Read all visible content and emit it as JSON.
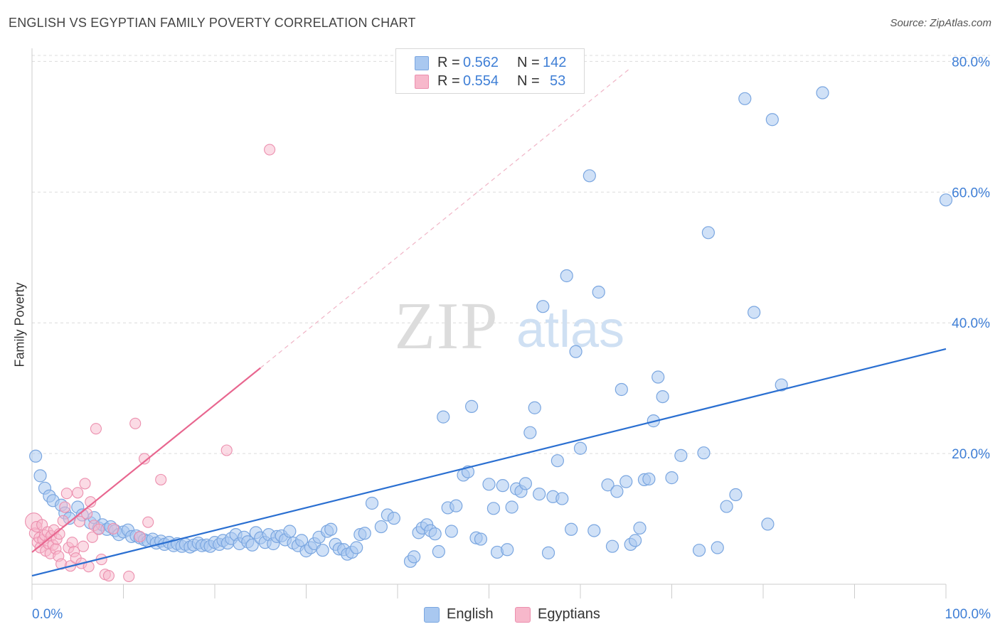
{
  "title": "ENGLISH VS EGYPTIAN FAMILY POVERTY CORRELATION CHART",
  "source": "Source: ZipAtlas.com",
  "watermark": {
    "zip": "ZIP",
    "atlas": "atlas"
  },
  "colors": {
    "english_fill": "#a9c8f0",
    "english_stroke": "#7aa6e0",
    "english_line": "#2a6fd1",
    "egypt_fill": "#f7b8cb",
    "egypt_stroke": "#ec8fae",
    "egypt_line": "#e8668f",
    "grid": "#dcdcdc",
    "tick_text": "#3f7fd6"
  },
  "legend": {
    "rows": [
      {
        "r_label": "R = ",
        "r_value": "0.562",
        "n_label": "N = ",
        "n_value": "142"
      },
      {
        "r_label": "R = ",
        "r_value": "0.554",
        "n_label": "N = ",
        "n_value": "53"
      }
    ]
  },
  "bottom_legend": {
    "english": "English",
    "egyptians": "Egyptians"
  },
  "chart_data": {
    "type": "scatter",
    "title": "ENGLISH VS EGYPTIAN FAMILY POVERTY CORRELATION CHART",
    "xlabel": "",
    "ylabel": "Family Poverty",
    "xlim": [
      0,
      100
    ],
    "ylim": [
      0,
      82
    ],
    "x_tick_labels": [
      {
        "value": 0,
        "label": "0.0%"
      },
      {
        "value": 100,
        "label": "100.0%"
      }
    ],
    "y_tick_labels": [
      {
        "value": 20,
        "label": "20.0%"
      },
      {
        "value": 40,
        "label": "40.0%"
      },
      {
        "value": 60,
        "label": "60.0%"
      },
      {
        "value": 80,
        "label": "80.0%"
      }
    ],
    "x_minor_ticks": [
      10,
      20,
      30,
      40,
      50,
      60,
      70,
      80,
      90,
      100
    ],
    "grid": true,
    "legend_position": "top-center",
    "series": [
      {
        "name": "English",
        "r": 0.562,
        "n": 142,
        "trend": {
          "x1": 0,
          "y1": 1.3,
          "x2": 100,
          "y2": 36.0
        },
        "points": [
          [
            0.4,
            19.6
          ],
          [
            0.9,
            16.6
          ],
          [
            1.4,
            14.7
          ],
          [
            1.9,
            13.5
          ],
          [
            2.3,
            12.8
          ],
          [
            3.2,
            12.1
          ],
          [
            3.6,
            10.9
          ],
          [
            4.1,
            10.1
          ],
          [
            5.0,
            11.8
          ],
          [
            5.5,
            10.6
          ],
          [
            6.4,
            9.4
          ],
          [
            6.8,
            10.2
          ],
          [
            7.3,
            8.6
          ],
          [
            7.7,
            9.1
          ],
          [
            8.2,
            8.4
          ],
          [
            8.6,
            8.8
          ],
          [
            9.1,
            8.2
          ],
          [
            9.5,
            7.6
          ],
          [
            10.0,
            8.0
          ],
          [
            10.5,
            8.3
          ],
          [
            10.9,
            7.3
          ],
          [
            11.4,
            7.4
          ],
          [
            11.8,
            7.1
          ],
          [
            12.3,
            6.8
          ],
          [
            12.7,
            6.6
          ],
          [
            13.2,
            6.9
          ],
          [
            13.6,
            6.3
          ],
          [
            14.1,
            6.6
          ],
          [
            14.5,
            6.1
          ],
          [
            15.0,
            6.4
          ],
          [
            15.5,
            5.9
          ],
          [
            15.9,
            6.2
          ],
          [
            16.4,
            5.8
          ],
          [
            16.8,
            6.1
          ],
          [
            17.3,
            5.7
          ],
          [
            17.7,
            6.0
          ],
          [
            18.2,
            6.3
          ],
          [
            18.6,
            5.9
          ],
          [
            19.1,
            6.0
          ],
          [
            19.5,
            5.8
          ],
          [
            20.0,
            6.4
          ],
          [
            20.5,
            6.1
          ],
          [
            20.9,
            6.7
          ],
          [
            21.4,
            6.3
          ],
          [
            21.8,
            7.0
          ],
          [
            22.3,
            7.6
          ],
          [
            22.7,
            6.2
          ],
          [
            23.2,
            7.2
          ],
          [
            23.6,
            6.5
          ],
          [
            24.1,
            6.0
          ],
          [
            24.5,
            7.9
          ],
          [
            25.0,
            7.1
          ],
          [
            25.5,
            6.4
          ],
          [
            25.9,
            7.6
          ],
          [
            26.4,
            6.2
          ],
          [
            26.8,
            7.3
          ],
          [
            27.3,
            7.4
          ],
          [
            27.7,
            6.8
          ],
          [
            28.2,
            8.1
          ],
          [
            28.6,
            6.3
          ],
          [
            29.1,
            5.9
          ],
          [
            29.5,
            6.7
          ],
          [
            30.0,
            5.1
          ],
          [
            30.5,
            5.6
          ],
          [
            30.9,
            6.2
          ],
          [
            31.4,
            7.2
          ],
          [
            31.8,
            5.2
          ],
          [
            32.3,
            8.1
          ],
          [
            32.7,
            8.4
          ],
          [
            33.2,
            6.1
          ],
          [
            33.6,
            5.4
          ],
          [
            34.1,
            5.3
          ],
          [
            34.5,
            4.6
          ],
          [
            35.0,
            4.9
          ],
          [
            35.5,
            5.6
          ],
          [
            35.9,
            7.6
          ],
          [
            36.4,
            7.8
          ],
          [
            37.2,
            12.4
          ],
          [
            38.2,
            8.8
          ],
          [
            38.9,
            10.6
          ],
          [
            39.6,
            10.1
          ],
          [
            41.4,
            3.5
          ],
          [
            41.8,
            4.2
          ],
          [
            42.3,
            7.9
          ],
          [
            42.7,
            8.6
          ],
          [
            43.2,
            9.1
          ],
          [
            43.6,
            8.2
          ],
          [
            44.1,
            7.7
          ],
          [
            44.5,
            5.0
          ],
          [
            45.0,
            25.6
          ],
          [
            45.5,
            11.7
          ],
          [
            45.9,
            8.1
          ],
          [
            46.4,
            12.0
          ],
          [
            47.2,
            16.7
          ],
          [
            47.7,
            17.2
          ],
          [
            48.1,
            27.2
          ],
          [
            48.6,
            7.1
          ],
          [
            49.1,
            6.9
          ],
          [
            50.0,
            15.3
          ],
          [
            50.5,
            11.6
          ],
          [
            50.9,
            4.9
          ],
          [
            51.5,
            15.1
          ],
          [
            52.0,
            5.3
          ],
          [
            52.5,
            11.8
          ],
          [
            53.0,
            14.6
          ],
          [
            53.5,
            14.2
          ],
          [
            54.0,
            15.4
          ],
          [
            54.5,
            23.2
          ],
          [
            55.0,
            27.0
          ],
          [
            55.5,
            13.8
          ],
          [
            55.9,
            42.5
          ],
          [
            56.5,
            4.8
          ],
          [
            57.0,
            13.4
          ],
          [
            57.5,
            18.9
          ],
          [
            58.0,
            13.1
          ],
          [
            58.5,
            47.2
          ],
          [
            59.0,
            8.4
          ],
          [
            59.5,
            35.6
          ],
          [
            60.0,
            20.8
          ],
          [
            61.0,
            62.5
          ],
          [
            61.5,
            8.2
          ],
          [
            62.0,
            44.7
          ],
          [
            63.0,
            15.2
          ],
          [
            63.5,
            5.8
          ],
          [
            64.0,
            14.2
          ],
          [
            64.5,
            29.8
          ],
          [
            65.0,
            15.7
          ],
          [
            65.5,
            6.1
          ],
          [
            66.0,
            6.7
          ],
          [
            66.5,
            8.6
          ],
          [
            67.0,
            16.0
          ],
          [
            67.5,
            16.1
          ],
          [
            68.0,
            25.0
          ],
          [
            68.5,
            31.7
          ],
          [
            69.0,
            28.7
          ],
          [
            70.0,
            16.3
          ],
          [
            71.0,
            19.7
          ],
          [
            73.0,
            5.2
          ],
          [
            73.5,
            20.1
          ],
          [
            74.0,
            53.8
          ],
          [
            75.0,
            5.6
          ],
          [
            76.0,
            11.9
          ],
          [
            77.0,
            13.7
          ],
          [
            78.0,
            74.3
          ],
          [
            79.0,
            41.6
          ],
          [
            80.5,
            9.2
          ],
          [
            81.0,
            71.1
          ],
          [
            82.0,
            30.5
          ],
          [
            86.5,
            75.2
          ],
          [
            100.0,
            58.8
          ]
        ]
      },
      {
        "name": "Egyptians",
        "r": 0.554,
        "n": 53,
        "trend": {
          "x1": 0,
          "y1": 4.9,
          "x2": 25.0,
          "y2": 33.1
        },
        "trend_extension": {
          "x1": 25.0,
          "y1": 33.1,
          "x2": 65.5,
          "y2": 79.0
        },
        "points": [
          [
            0.2,
            9.6
          ],
          [
            0.3,
            7.8
          ],
          [
            0.5,
            8.8
          ],
          [
            0.6,
            6.4
          ],
          [
            0.8,
            7.1
          ],
          [
            0.9,
            5.6
          ],
          [
            1.1,
            9.1
          ],
          [
            1.2,
            6.8
          ],
          [
            1.4,
            7.5
          ],
          [
            1.5,
            5.1
          ],
          [
            1.7,
            8.0
          ],
          [
            1.8,
            6.2
          ],
          [
            2.0,
            4.7
          ],
          [
            2.1,
            7.4
          ],
          [
            2.3,
            6.0
          ],
          [
            2.4,
            8.3
          ],
          [
            2.6,
            5.4
          ],
          [
            2.7,
            6.9
          ],
          [
            2.9,
            4.3
          ],
          [
            3.0,
            7.7
          ],
          [
            3.2,
            3.1
          ],
          [
            3.4,
            9.7
          ],
          [
            3.6,
            11.8
          ],
          [
            3.8,
            13.9
          ],
          [
            4.0,
            5.6
          ],
          [
            4.2,
            2.8
          ],
          [
            4.4,
            6.4
          ],
          [
            4.6,
            5.0
          ],
          [
            4.8,
            4.0
          ],
          [
            5.0,
            14.0
          ],
          [
            5.2,
            9.6
          ],
          [
            5.4,
            3.2
          ],
          [
            5.6,
            5.8
          ],
          [
            5.8,
            15.4
          ],
          [
            6.0,
            10.8
          ],
          [
            6.2,
            2.7
          ],
          [
            6.4,
            12.6
          ],
          [
            6.6,
            7.2
          ],
          [
            6.8,
            9.0
          ],
          [
            7.0,
            23.8
          ],
          [
            7.3,
            8.4
          ],
          [
            7.6,
            3.8
          ],
          [
            8.0,
            1.5
          ],
          [
            8.4,
            1.3
          ],
          [
            8.9,
            8.5
          ],
          [
            10.6,
            1.2
          ],
          [
            11.3,
            24.6
          ],
          [
            11.8,
            7.3
          ],
          [
            12.3,
            19.2
          ],
          [
            12.7,
            9.5
          ],
          [
            14.1,
            16.0
          ],
          [
            21.3,
            20.5
          ],
          [
            26.0,
            66.5
          ]
        ]
      }
    ]
  }
}
